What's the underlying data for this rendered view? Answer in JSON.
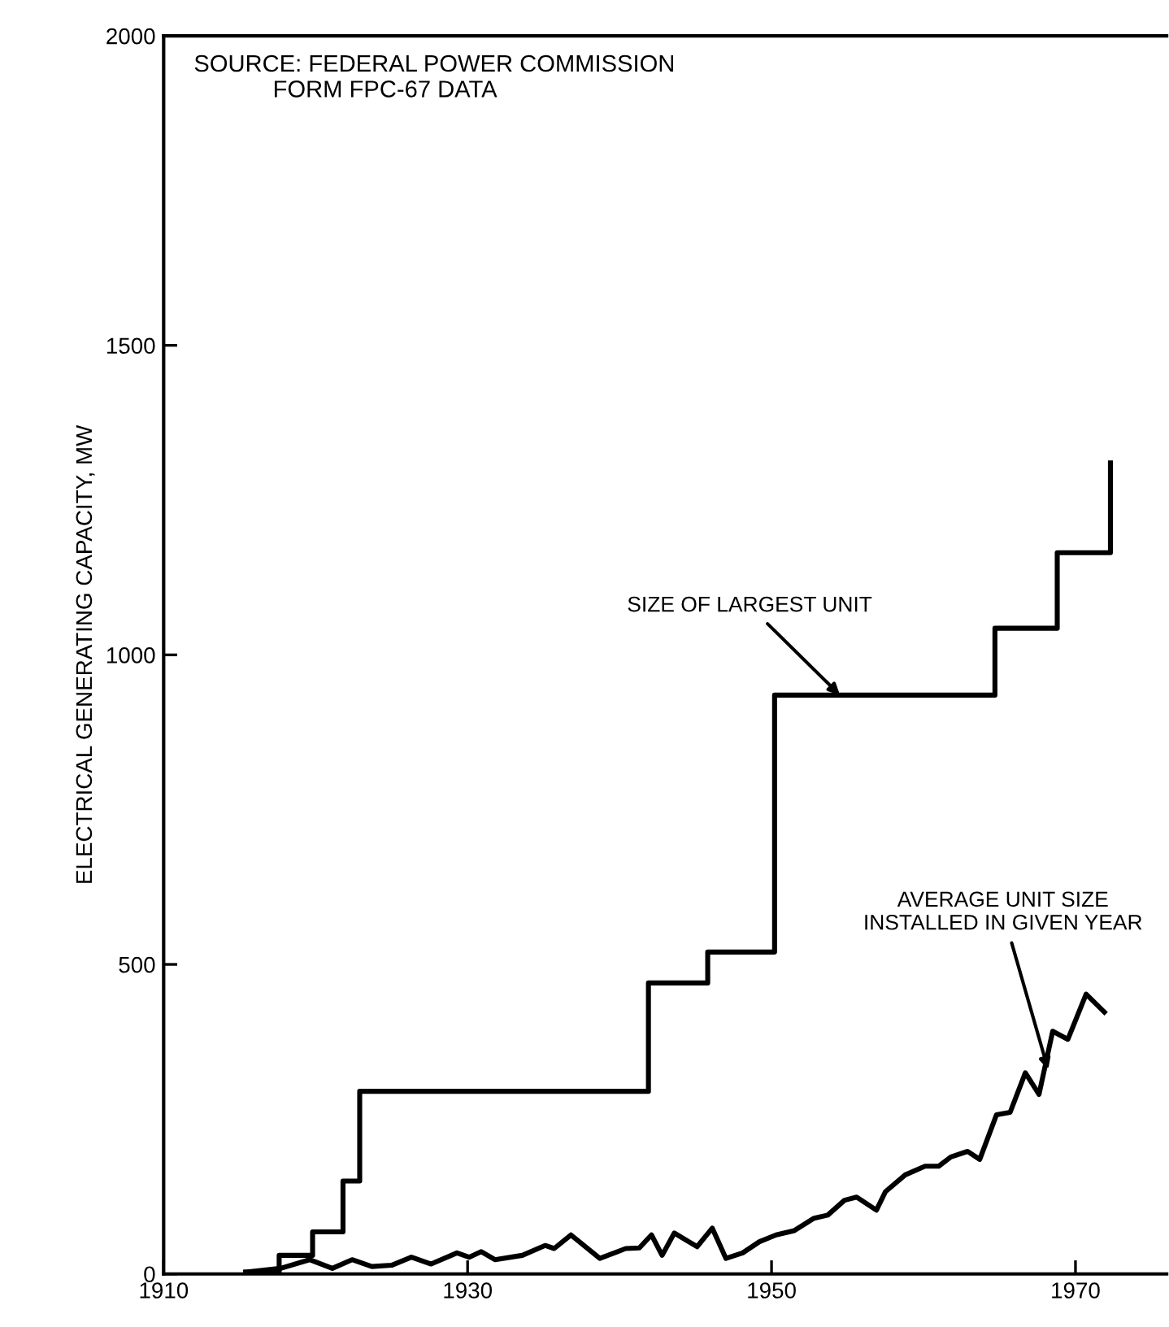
{
  "chart_data": {
    "type": "line",
    "ylabel": "ELECTRICAL GENERATING CAPACITY, MW",
    "xlim": [
      1910,
      1976
    ],
    "ylim": [
      0,
      2000
    ],
    "xticks": [
      1910,
      1930,
      1950,
      1970
    ],
    "yticks": [
      0,
      500,
      1000,
      1500,
      2000
    ],
    "grid": false,
    "legend": false,
    "marker": "none",
    "line_style": "solid",
    "series": [
      {
        "type": "step",
        "color": "#000000",
        "x": [
          1915.4,
          1917.6,
          1919.8,
          1921.8,
          1922.9,
          1941.9,
          1945.8,
          1950.2,
          1964.7,
          1968.8,
          1972.3
        ],
        "values": [
          3,
          30,
          68,
          150,
          295,
          470,
          520,
          935,
          1043,
          1165,
          1310
        ]
      },
      {
        "type": "line",
        "color": "#000000",
        "x": [
          1915.4,
          1917.7,
          1919.6,
          1921.1,
          1922.4,
          1923.7,
          1925.0,
          1926.3,
          1927.6,
          1929.3,
          1930.1,
          1930.9,
          1931.8,
          1933.6,
          1935.1,
          1935.7,
          1936.8,
          1938.7,
          1940.4,
          1941.3,
          1942.1,
          1942.8,
          1943.6,
          1945.1,
          1946.1,
          1947.0,
          1948.1,
          1949.2,
          1950.3,
          1951.5,
          1952.8,
          1953.7,
          1954.8,
          1955.6,
          1956.9,
          1957.5,
          1958.8,
          1960.1,
          1961.0,
          1961.8,
          1962.9,
          1963.7,
          1964.8,
          1965.7,
          1966.7,
          1967.6,
          1968.5,
          1969.5,
          1970.7,
          1971.9
        ],
        "values": [
          3,
          9,
          23,
          9,
          23,
          12,
          14,
          27,
          16,
          34,
          27,
          36,
          23,
          30,
          46,
          41,
          63,
          25,
          41,
          42,
          63,
          30,
          66,
          44,
          74,
          25,
          34,
          52,
          63,
          70,
          90,
          95,
          119,
          124,
          103,
          133,
          160,
          174,
          174,
          189,
          198,
          185,
          257,
          261,
          325,
          290,
          392,
          379,
          452,
          423
        ]
      }
    ],
    "annotations": [
      "SOURCE: FEDERAL POWER COMMISSION\n            FORM FPC-67 DATA",
      {
        "text": "SIZE OF LARGEST UNIT",
        "x": 1954.5,
        "y": 935
      },
      {
        "text": "AVERAGE UNIT SIZE\nINSTALLED IN GIVEN YEAR",
        "x": 1968.2,
        "y": 330
      }
    ]
  }
}
